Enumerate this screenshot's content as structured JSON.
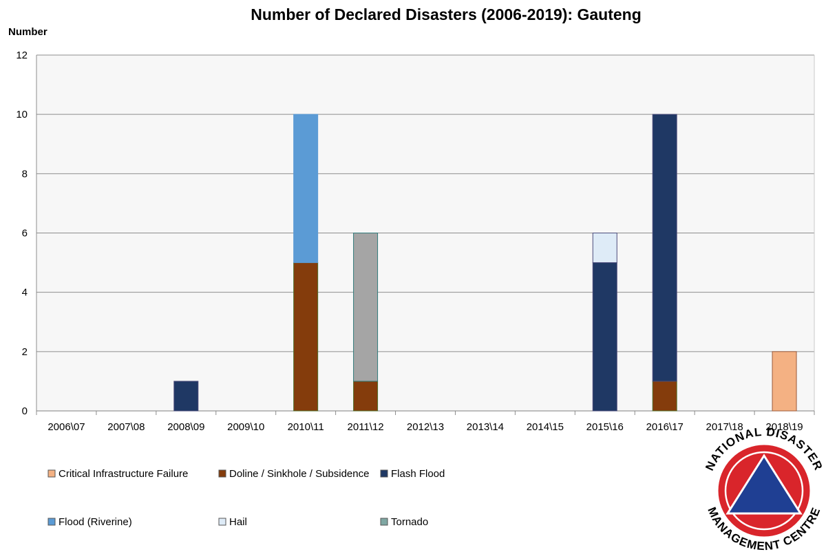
{
  "chart_data": {
    "type": "bar",
    "stacked": true,
    "title": "Number of Declared Disasters (2006-2019): Gauteng",
    "ylabel": "Number",
    "xlabel": "",
    "ylim": [
      0,
      12
    ],
    "yticks": [
      0,
      2,
      4,
      6,
      8,
      10,
      12
    ],
    "grid": true,
    "legend_position": "bottom-left",
    "categories": [
      "2006\\07",
      "2007\\08",
      "2008\\09",
      "2009\\10",
      "2010\\11",
      "2011\\12",
      "2012\\13",
      "2013\\14",
      "2014\\15",
      "2015\\16",
      "2016\\17",
      "2017\\18",
      "2018\\19"
    ],
    "series": [
      {
        "name": "Critical Infrastructure Failure",
        "color": "#F4B183",
        "values": [
          0,
          0,
          0,
          0,
          0,
          0,
          0,
          0,
          0,
          0,
          0,
          0,
          2
        ]
      },
      {
        "name": "Doline / Sinkhole / Subsidence",
        "color": "#843C0C",
        "values": [
          0,
          0,
          0,
          0,
          5,
          1,
          0,
          0,
          0,
          0,
          1,
          0,
          0
        ]
      },
      {
        "name": "Flash Flood",
        "color": "#1F3864",
        "values": [
          0,
          0,
          1,
          0,
          0,
          0,
          0,
          0,
          0,
          5,
          9,
          0,
          0
        ]
      },
      {
        "name": "Flood (Riverine)",
        "color": "#5B9BD5",
        "values": [
          0,
          0,
          0,
          0,
          5,
          0,
          0,
          0,
          0,
          0,
          0,
          0,
          0
        ]
      },
      {
        "name": "Hail",
        "color": "#DEEBF7",
        "values": [
          0,
          0,
          0,
          0,
          0,
          0,
          0,
          0,
          0,
          1,
          0,
          0,
          0
        ]
      },
      {
        "name": "Tornado",
        "color": "#7FA7A3",
        "values": [
          0,
          0,
          0,
          0,
          0,
          0,
          0,
          0,
          0,
          0,
          0,
          0,
          0
        ]
      },
      {
        "name": "",
        "color": "#A5A5A5",
        "values": [
          0,
          0,
          0,
          0,
          0,
          5,
          0,
          0,
          0,
          0,
          0,
          0,
          0
        ]
      }
    ]
  },
  "logo": {
    "top_text": "NATIONAL DISASTER",
    "bottom_text": "MANAGEMENT CENTRE",
    "ring_color": "#D9252B",
    "triangle_color": "#1F3F93"
  }
}
